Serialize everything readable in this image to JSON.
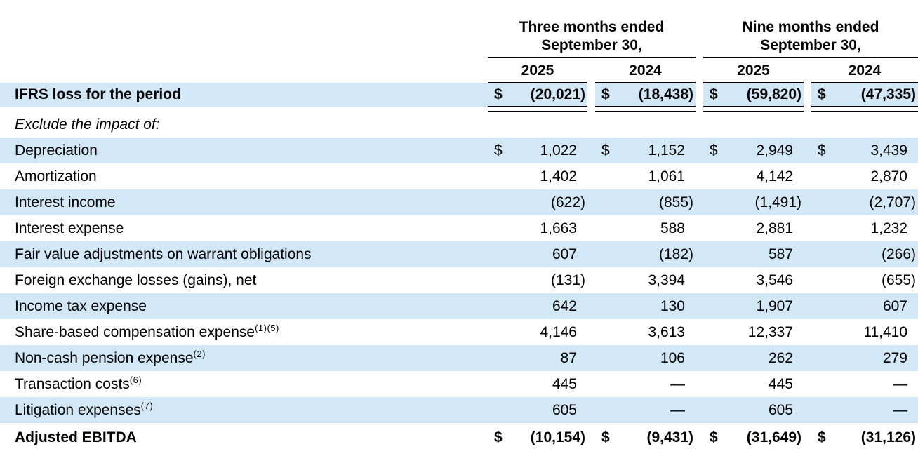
{
  "colors": {
    "row_shade": "#d2e8f7",
    "text": "#000000",
    "rule": "#000000"
  },
  "table": {
    "currency_symbol": "$",
    "col_groups": [
      {
        "line1": "Three months ended",
        "line2": "September 30,"
      },
      {
        "line1": "Nine months ended",
        "line2": "September 30,"
      }
    ],
    "years": [
      "2025",
      "2024",
      "2025",
      "2024"
    ],
    "rows": [
      {
        "label": "IFRS loss for the period",
        "style": "bold",
        "shaded": true,
        "dollar": "$",
        "main": true,
        "double_underline": true,
        "values": [
          "(20,021)",
          "(18,438)",
          "(59,820)",
          "(47,335)"
        ]
      },
      {
        "label": "Exclude the impact of:",
        "style": "italic",
        "shaded": false,
        "values": [
          "",
          "",
          "",
          ""
        ]
      },
      {
        "label": "Depreciation",
        "shaded": true,
        "dollar": "$",
        "values": [
          "1,022",
          "1,152",
          "2,949",
          "3,439"
        ]
      },
      {
        "label": "Amortization",
        "shaded": false,
        "values": [
          "1,402",
          "1,061",
          "4,142",
          "2,870"
        ]
      },
      {
        "label": "Interest income",
        "shaded": true,
        "values": [
          "(622)",
          "(855)",
          "(1,491)",
          "(2,707)"
        ]
      },
      {
        "label": "Interest expense",
        "shaded": false,
        "values": [
          "1,663",
          "588",
          "2,881",
          "1,232"
        ]
      },
      {
        "label": "Fair value adjustments on warrant obligations",
        "shaded": true,
        "values": [
          "607",
          "(182)",
          "587",
          "(266)"
        ]
      },
      {
        "label": "Foreign exchange losses (gains), net",
        "shaded": false,
        "values": [
          "(131)",
          "3,394",
          "3,546",
          "(655)"
        ]
      },
      {
        "label": "Income tax expense",
        "shaded": true,
        "values": [
          "642",
          "130",
          "1,907",
          "607"
        ]
      },
      {
        "label": "Share-based compensation expense",
        "sup": "(1)(5)",
        "shaded": false,
        "values": [
          "4,146",
          "3,613",
          "12,337",
          "11,410"
        ]
      },
      {
        "label": "Non-cash pension expense",
        "sup": "(2)",
        "shaded": true,
        "values": [
          "87",
          "106",
          "262",
          "279"
        ]
      },
      {
        "label": "Transaction costs",
        "sup": "(6)",
        "shaded": false,
        "values": [
          "445",
          "—",
          "445",
          "—"
        ]
      },
      {
        "label": "Litigation expenses",
        "sup": "(7)",
        "shaded": true,
        "values": [
          "605",
          "—",
          "605",
          "—"
        ]
      },
      {
        "label": "Adjusted EBITDA",
        "style": "bold",
        "shaded": false,
        "dollar": "$",
        "last": true,
        "values": [
          "(10,154)",
          "(9,431)",
          "(31,649)",
          "(31,126)"
        ]
      }
    ]
  }
}
